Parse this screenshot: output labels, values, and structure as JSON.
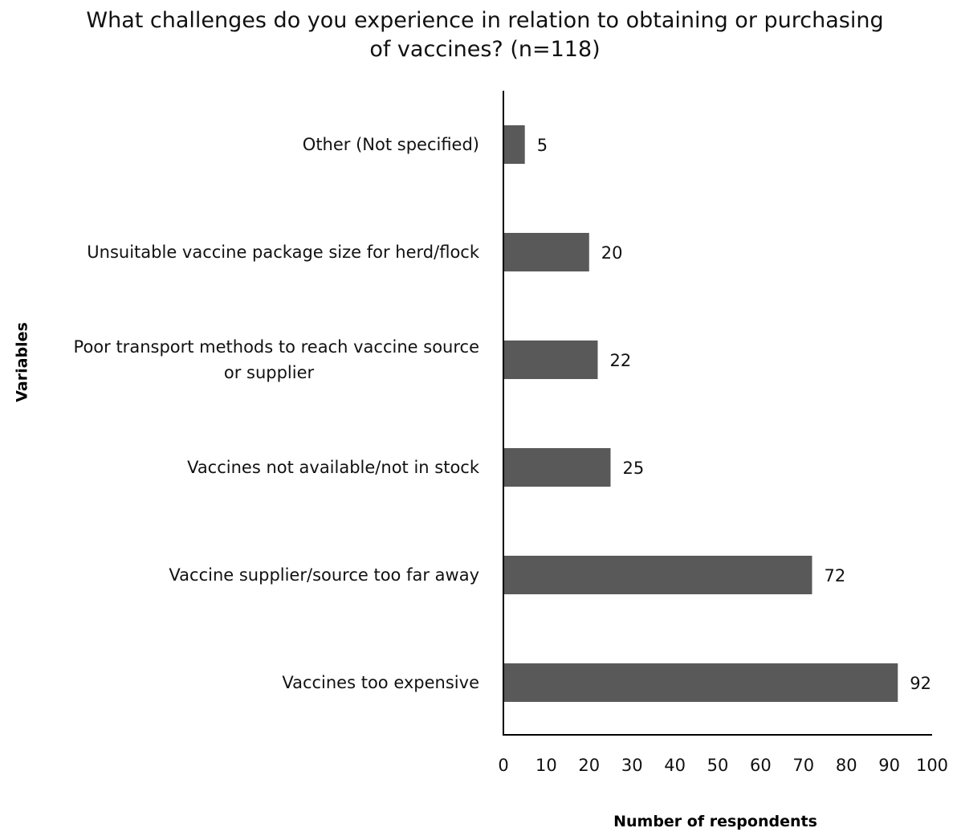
{
  "chart_data": {
    "type": "bar",
    "orientation": "horizontal",
    "title_lines": [
      "What challenges do you experience in relation to obtaining or purchasing",
      "of vaccines? (n=118)"
    ],
    "categories": [
      [
        "Other (Not specified)"
      ],
      [
        "Unsuitable vaccine package size for herd/flock"
      ],
      [
        "Poor transport methods to reach vaccine source",
        "or supplier"
      ],
      [
        "Vaccines not available/not in stock"
      ],
      [
        "Vaccine supplier/source too far away"
      ],
      [
        "Vaccines too expensive"
      ]
    ],
    "values": [
      5,
      20,
      22,
      25,
      72,
      92
    ],
    "xlabel": "Number of respondents",
    "ylabel": "Variables",
    "xlim": [
      0,
      100
    ],
    "xticks": [
      "0",
      "10",
      "20",
      "30",
      "40",
      "50",
      "60",
      "70",
      "80",
      "90",
      "100"
    ],
    "grid": false,
    "legend": "none",
    "bar_color": "#595959"
  }
}
